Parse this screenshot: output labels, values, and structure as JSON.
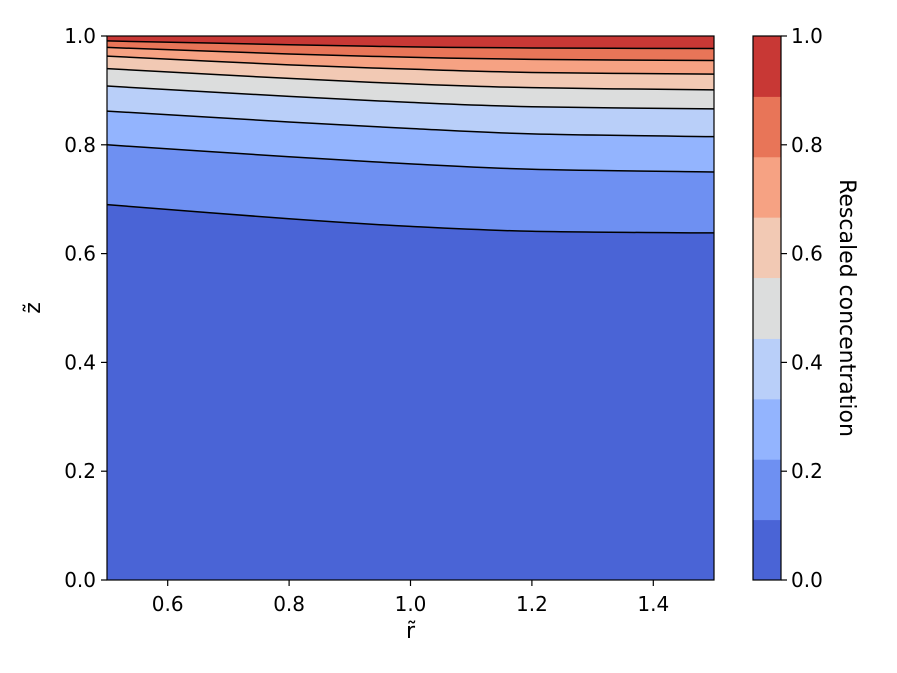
{
  "chart_data": {
    "type": "contourf",
    "colormap": "coolwarm",
    "xlabel": "r̃",
    "ylabel": "z̃",
    "xlim": [
      0.5,
      1.5
    ],
    "ylim": [
      0.0,
      1.0
    ],
    "x_ticks": [
      "0.6",
      "0.8",
      "1.0",
      "1.2",
      "1.4"
    ],
    "y_ticks": [
      "0.0",
      "0.2",
      "0.4",
      "0.6",
      "0.8",
      "1.0"
    ],
    "colorbar": {
      "label": "Rescaled concentration",
      "range": [
        0.0,
        1.0
      ],
      "ticks": [
        "0.0",
        "0.2",
        "0.4",
        "0.6",
        "0.8",
        "1.0"
      ],
      "levels": [
        0.0,
        0.111,
        0.222,
        0.333,
        0.444,
        0.556,
        0.667,
        0.778,
        0.889,
        1.0
      ],
      "band_colors": [
        "#4a64d6",
        "#6e90f2",
        "#93b4fe",
        "#b9cff9",
        "#dcdddd",
        "#f2c9b4",
        "#f6a283",
        "#e87558",
        "#c83835"
      ]
    },
    "contour_lines": [
      {
        "level": 0.111,
        "points": [
          [
            0.5,
            0.69
          ],
          [
            0.8,
            0.664
          ],
          [
            1.0,
            0.65
          ],
          [
            1.2,
            0.641
          ],
          [
            1.5,
            0.638
          ]
        ]
      },
      {
        "level": 0.222,
        "points": [
          [
            0.5,
            0.8
          ],
          [
            0.8,
            0.778
          ],
          [
            1.0,
            0.765
          ],
          [
            1.2,
            0.755
          ],
          [
            1.5,
            0.75
          ]
        ]
      },
      {
        "level": 0.333,
        "points": [
          [
            0.5,
            0.862
          ],
          [
            0.8,
            0.842
          ],
          [
            1.0,
            0.83
          ],
          [
            1.2,
            0.82
          ],
          [
            1.5,
            0.815
          ]
        ]
      },
      {
        "level": 0.444,
        "points": [
          [
            0.5,
            0.908
          ],
          [
            0.8,
            0.889
          ],
          [
            1.0,
            0.878
          ],
          [
            1.2,
            0.87
          ],
          [
            1.5,
            0.866
          ]
        ]
      },
      {
        "level": 0.556,
        "points": [
          [
            0.5,
            0.94
          ],
          [
            0.8,
            0.922
          ],
          [
            1.0,
            0.912
          ],
          [
            1.2,
            0.905
          ],
          [
            1.5,
            0.901
          ]
        ]
      },
      {
        "level": 0.667,
        "points": [
          [
            0.5,
            0.963
          ],
          [
            0.8,
            0.947
          ],
          [
            1.0,
            0.939
          ],
          [
            1.2,
            0.933
          ],
          [
            1.5,
            0.93
          ]
        ]
      },
      {
        "level": 0.778,
        "points": [
          [
            0.5,
            0.979
          ],
          [
            0.8,
            0.967
          ],
          [
            1.0,
            0.961
          ],
          [
            1.2,
            0.957
          ],
          [
            1.5,
            0.955
          ]
        ]
      },
      {
        "level": 0.889,
        "points": [
          [
            0.5,
            0.991
          ],
          [
            0.8,
            0.984
          ],
          [
            1.0,
            0.98
          ],
          [
            1.2,
            0.978
          ],
          [
            1.5,
            0.977
          ]
        ]
      }
    ]
  }
}
